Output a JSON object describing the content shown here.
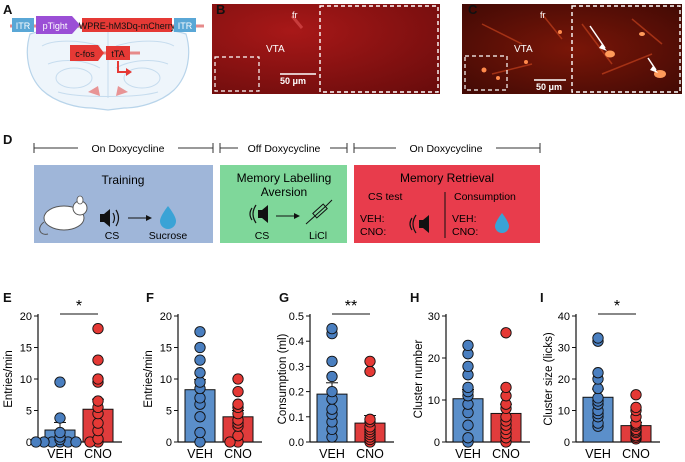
{
  "panel_labels": {
    "a": "A",
    "b": "B",
    "c": "C",
    "d": "D",
    "e": "E",
    "f": "F",
    "g": "G",
    "h": "H",
    "i": "I"
  },
  "construct": {
    "itr_left": "ITR",
    "ptight": "pTight",
    "payload": "WPRE-hM3Dq-mCherry",
    "itr_right": "ITR",
    "cfos": "c-fos",
    "tta": "tTA"
  },
  "micrographs": {
    "b": {
      "fr": "fr",
      "region": "VTA",
      "scale": "50 μm"
    },
    "c": {
      "fr": "fr",
      "region": "VTA",
      "scale": "50 μm"
    }
  },
  "colors": {
    "veh_fill": "#5b8fca",
    "veh_point": "#4a7fc0",
    "cno_fill": "#e03c3c",
    "cno_point": "#e53935",
    "training_box": "#9fb6d9",
    "labelling_box": "#7fd79a",
    "retrieval_box": "#e83c4c"
  },
  "timeline": {
    "phase1": "On Doxycycline",
    "phase2": "Off Doxycycline",
    "phase3": "On Doxycycline",
    "training": {
      "title": "Training",
      "cs": "CS",
      "sucrose": "Sucrose"
    },
    "labelling": {
      "title_line1": "Memory Labelling",
      "title_line2": "Aversion",
      "cs": "CS",
      "licl": "LiCl"
    },
    "retrieval": {
      "title": "Memory Retrieval",
      "cs_test": "CS test",
      "consumption": "Consumption",
      "veh": "VEH:",
      "cno": "CNO:",
      "veh2": "VEH:",
      "cno2": "CNO:"
    }
  },
  "chart_data": [
    {
      "type": "bar",
      "panel": "E",
      "ylabel": "Entries/min",
      "ylim": [
        0,
        20
      ],
      "yticks": [
        "0",
        "5",
        "10",
        "15",
        "20"
      ],
      "ytick_values": [
        0,
        5,
        10,
        15,
        20
      ],
      "categories": [
        "VEH",
        "CNO"
      ],
      "means": [
        1.9,
        5.2
      ],
      "sem": [
        1.2,
        1.6
      ],
      "points": [
        [
          0,
          0,
          0,
          0,
          0,
          0,
          0.4,
          0.8,
          1.5,
          3.8,
          9.5
        ],
        [
          0,
          0,
          0.5,
          1.8,
          3,
          4.5,
          5.5,
          6.5,
          9.5,
          10,
          13,
          18
        ]
      ],
      "significance": "*"
    },
    {
      "type": "bar",
      "panel": "F",
      "ylabel": "Entries/min",
      "ylim": [
        0,
        20
      ],
      "yticks": [
        "0",
        "5",
        "10",
        "15",
        "20"
      ],
      "ytick_values": [
        0,
        5,
        10,
        15,
        20
      ],
      "categories": [
        "VEH",
        "CNO"
      ],
      "means": [
        8.3,
        4.0
      ],
      "sem": [
        1.6,
        1.0
      ],
      "points": [
        [
          0,
          1.5,
          4,
          6,
          7,
          8.5,
          9.5,
          11,
          13,
          15,
          17.5
        ],
        [
          0,
          0,
          1,
          2.5,
          3,
          3.5,
          4.5,
          5.5,
          6,
          8,
          10
        ]
      ],
      "significance": ""
    },
    {
      "type": "bar",
      "panel": "G",
      "ylabel": "Consumption (ml)",
      "ylim": [
        0,
        0.5
      ],
      "yticks": [
        "0.0",
        "0.1",
        "0.2",
        "0.3",
        "0.4",
        "0.5"
      ],
      "ytick_values": [
        0,
        0.1,
        0.2,
        0.3,
        0.4,
        0.5
      ],
      "categories": [
        "VEH",
        "CNO"
      ],
      "means": [
        0.19,
        0.075
      ],
      "sem": [
        0.045,
        0.03
      ],
      "points": [
        [
          0.02,
          0.05,
          0.08,
          0.11,
          0.13,
          0.17,
          0.2,
          0.26,
          0.32,
          0.43,
          0.45
        ],
        [
          0,
          0.01,
          0.02,
          0.03,
          0.04,
          0.05,
          0.06,
          0.08,
          0.09,
          0.28,
          0.32
        ]
      ],
      "significance": "**"
    },
    {
      "type": "bar",
      "panel": "H",
      "ylabel": "Cluster number",
      "ylim": [
        0,
        30
      ],
      "yticks": [
        "0",
        "10",
        "20",
        "30"
      ],
      "ytick_values": [
        0,
        10,
        20,
        30
      ],
      "categories": [
        "VEH",
        "CNO"
      ],
      "means": [
        10.3,
        6.8
      ],
      "sem": [
        2.2,
        2.2
      ],
      "points": [
        [
          0,
          1,
          4,
          7,
          9,
          11,
          12,
          13,
          16,
          18,
          21,
          23
        ],
        [
          0,
          1,
          2,
          3,
          4,
          5,
          6,
          8,
          9,
          11,
          13,
          26
        ]
      ],
      "significance": ""
    },
    {
      "type": "bar",
      "panel": "I",
      "ylabel": "Cluster size (licks)",
      "ylim": [
        0,
        40
      ],
      "yticks": [
        "0",
        "10",
        "20",
        "30",
        "40"
      ],
      "ytick_values": [
        0,
        10,
        20,
        30,
        40
      ],
      "categories": [
        "VEH",
        "CNO"
      ],
      "means": [
        14.2,
        5.2
      ],
      "sem": [
        2.6,
        1.0
      ],
      "points": [
        [
          5,
          6,
          8,
          9,
          10,
          12,
          13,
          14,
          17,
          20,
          22,
          32,
          33
        ],
        [
          1,
          1.5,
          2,
          3,
          3.5,
          4,
          5,
          5.5,
          6,
          8,
          10,
          11,
          15
        ]
      ],
      "significance": "*"
    }
  ]
}
